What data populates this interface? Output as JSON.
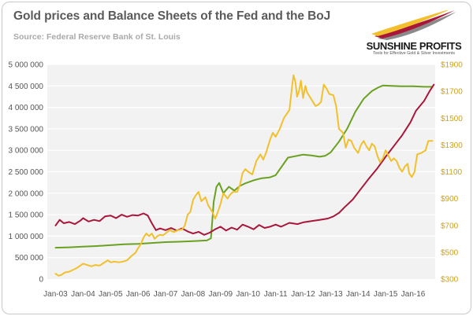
{
  "chart_data": {
    "type": "line",
    "title": "Gold prices and Balance Sheets of the Fed and the BoJ",
    "subtitle": "Source: Federal Reserve Bank of St. Louis",
    "x_tick_labels": [
      "Jan-03",
      "Jan-04",
      "Jan-05",
      "Jan-06",
      "Jan-07",
      "Jan-08",
      "Jan-09",
      "Jan-10",
      "Jan-11",
      "Jan-12",
      "Jan-13",
      "Jan-14",
      "Jan-15",
      "Jan-16"
    ],
    "x_range": [
      2003.0,
      2016.75
    ],
    "y_left": {
      "range": [
        0,
        5000000
      ],
      "tick_values": [
        0,
        500000,
        1000000,
        1500000,
        2000000,
        2500000,
        3000000,
        3500000,
        4000000,
        4500000,
        5000000
      ],
      "tick_labels": [
        "0",
        "500 000",
        "1 000 000",
        "1 500 000",
        "2 000 000",
        "2 500 000",
        "3 000 000",
        "3 500 000",
        "4 000 000",
        "4 500 000",
        "5 000 000"
      ]
    },
    "y_right": {
      "range": [
        300,
        1900
      ],
      "tick_values": [
        300,
        500,
        700,
        900,
        1100,
        1300,
        1500,
        1700,
        1900
      ],
      "tick_labels": [
        "$300",
        "$500",
        "$700",
        "$900",
        "$1100",
        "$1300",
        "$1500",
        "$1700",
        "$1900"
      ]
    },
    "grid": true,
    "legend": "none",
    "series": [
      {
        "axis": "left",
        "color": "#6aa121",
        "points": [
          [
            2003.0,
            730000
          ],
          [
            2003.5,
            740000
          ],
          [
            2004.0,
            755000
          ],
          [
            2004.5,
            770000
          ],
          [
            2005.0,
            790000
          ],
          [
            2005.5,
            810000
          ],
          [
            2006.0,
            820000
          ],
          [
            2006.5,
            840000
          ],
          [
            2007.0,
            860000
          ],
          [
            2007.5,
            870000
          ],
          [
            2008.0,
            885000
          ],
          [
            2008.5,
            900000
          ],
          [
            2008.65,
            950000
          ],
          [
            2008.75,
            1800000
          ],
          [
            2008.85,
            2150000
          ],
          [
            2008.95,
            2240000
          ],
          [
            2009.1,
            2000000
          ],
          [
            2009.3,
            2150000
          ],
          [
            2009.5,
            2060000
          ],
          [
            2009.7,
            2170000
          ],
          [
            2009.9,
            2230000
          ],
          [
            2010.2,
            2300000
          ],
          [
            2010.5,
            2350000
          ],
          [
            2010.8,
            2370000
          ],
          [
            2011.0,
            2420000
          ],
          [
            2011.2,
            2600000
          ],
          [
            2011.45,
            2830000
          ],
          [
            2011.7,
            2860000
          ],
          [
            2012.0,
            2900000
          ],
          [
            2012.3,
            2880000
          ],
          [
            2012.6,
            2850000
          ],
          [
            2012.8,
            2870000
          ],
          [
            2013.0,
            2950000
          ],
          [
            2013.3,
            3200000
          ],
          [
            2013.6,
            3500000
          ],
          [
            2013.9,
            3900000
          ],
          [
            2014.2,
            4200000
          ],
          [
            2014.5,
            4380000
          ],
          [
            2014.75,
            4470000
          ],
          [
            2014.9,
            4510000
          ],
          [
            2015.2,
            4500000
          ],
          [
            2015.6,
            4490000
          ],
          [
            2016.0,
            4490000
          ],
          [
            2016.4,
            4480000
          ],
          [
            2016.7,
            4480000
          ]
        ]
      },
      {
        "axis": "left",
        "color": "#a8173a",
        "points": [
          [
            2003.0,
            1250000
          ],
          [
            2003.15,
            1380000
          ],
          [
            2003.3,
            1300000
          ],
          [
            2003.5,
            1330000
          ],
          [
            2003.7,
            1280000
          ],
          [
            2003.9,
            1360000
          ],
          [
            2004.0,
            1420000
          ],
          [
            2004.2,
            1340000
          ],
          [
            2004.4,
            1380000
          ],
          [
            2004.6,
            1350000
          ],
          [
            2004.8,
            1460000
          ],
          [
            2005.0,
            1480000
          ],
          [
            2005.2,
            1420000
          ],
          [
            2005.4,
            1500000
          ],
          [
            2005.6,
            1450000
          ],
          [
            2005.8,
            1490000
          ],
          [
            2006.0,
            1480000
          ],
          [
            2006.2,
            1530000
          ],
          [
            2006.35,
            1480000
          ],
          [
            2006.5,
            1300000
          ],
          [
            2006.65,
            1140000
          ],
          [
            2006.8,
            1180000
          ],
          [
            2007.0,
            1140000
          ],
          [
            2007.2,
            1190000
          ],
          [
            2007.4,
            1130000
          ],
          [
            2007.6,
            1180000
          ],
          [
            2007.8,
            1110000
          ],
          [
            2008.0,
            1060000
          ],
          [
            2008.2,
            1100000
          ],
          [
            2008.4,
            1030000
          ],
          [
            2008.6,
            1080000
          ],
          [
            2008.8,
            1160000
          ],
          [
            2009.0,
            1220000
          ],
          [
            2009.2,
            1130000
          ],
          [
            2009.4,
            1200000
          ],
          [
            2009.6,
            1150000
          ],
          [
            2009.8,
            1270000
          ],
          [
            2010.0,
            1220000
          ],
          [
            2010.2,
            1160000
          ],
          [
            2010.4,
            1260000
          ],
          [
            2010.6,
            1190000
          ],
          [
            2010.8,
            1220000
          ],
          [
            2011.0,
            1270000
          ],
          [
            2011.2,
            1220000
          ],
          [
            2011.5,
            1310000
          ],
          [
            2011.8,
            1280000
          ],
          [
            2012.0,
            1320000
          ],
          [
            2012.3,
            1350000
          ],
          [
            2012.6,
            1380000
          ],
          [
            2012.9,
            1410000
          ],
          [
            2013.1,
            1460000
          ],
          [
            2013.3,
            1540000
          ],
          [
            2013.5,
            1670000
          ],
          [
            2013.8,
            1850000
          ],
          [
            2014.1,
            2100000
          ],
          [
            2014.4,
            2350000
          ],
          [
            2014.7,
            2580000
          ],
          [
            2015.0,
            2850000
          ],
          [
            2015.3,
            3100000
          ],
          [
            2015.6,
            3350000
          ],
          [
            2015.9,
            3650000
          ],
          [
            2016.1,
            3920000
          ],
          [
            2016.4,
            4150000
          ],
          [
            2016.6,
            4380000
          ],
          [
            2016.75,
            4530000
          ]
        ]
      },
      {
        "axis": "right",
        "color": "#f2c02c",
        "points": [
          [
            2003.0,
            340
          ],
          [
            2003.1,
            325
          ],
          [
            2003.2,
            330
          ],
          [
            2003.35,
            350
          ],
          [
            2003.5,
            355
          ],
          [
            2003.6,
            365
          ],
          [
            2003.75,
            380
          ],
          [
            2003.9,
            400
          ],
          [
            2004.0,
            415
          ],
          [
            2004.15,
            405
          ],
          [
            2004.3,
            395
          ],
          [
            2004.45,
            405
          ],
          [
            2004.6,
            400
          ],
          [
            2004.75,
            420
          ],
          [
            2004.9,
            440
          ],
          [
            2005.0,
            425
          ],
          [
            2005.15,
            430
          ],
          [
            2005.3,
            425
          ],
          [
            2005.45,
            430
          ],
          [
            2005.6,
            440
          ],
          [
            2005.75,
            470
          ],
          [
            2005.9,
            495
          ],
          [
            2006.0,
            530
          ],
          [
            2006.1,
            560
          ],
          [
            2006.2,
            610
          ],
          [
            2006.3,
            640
          ],
          [
            2006.4,
            620
          ],
          [
            2006.5,
            640
          ],
          [
            2006.6,
            600
          ],
          [
            2006.7,
            620
          ],
          [
            2006.8,
            630
          ],
          [
            2006.9,
            625
          ],
          [
            2007.0,
            640
          ],
          [
            2007.15,
            665
          ],
          [
            2007.3,
            650
          ],
          [
            2007.45,
            665
          ],
          [
            2007.6,
            670
          ],
          [
            2007.7,
            700
          ],
          [
            2007.8,
            780
          ],
          [
            2007.9,
            800
          ],
          [
            2008.0,
            890
          ],
          [
            2008.1,
            925
          ],
          [
            2008.2,
            950
          ],
          [
            2008.3,
            880
          ],
          [
            2008.45,
            910
          ],
          [
            2008.55,
            850
          ],
          [
            2008.7,
            800
          ],
          [
            2008.8,
            750
          ],
          [
            2008.9,
            800
          ],
          [
            2009.0,
            860
          ],
          [
            2009.1,
            940
          ],
          [
            2009.25,
            900
          ],
          [
            2009.35,
            930
          ],
          [
            2009.45,
            950
          ],
          [
            2009.6,
            950
          ],
          [
            2009.7,
            1000
          ],
          [
            2009.8,
            1090
          ],
          [
            2009.9,
            1120
          ],
          [
            2010.0,
            1100
          ],
          [
            2010.15,
            1080
          ],
          [
            2010.3,
            1180
          ],
          [
            2010.45,
            1230
          ],
          [
            2010.55,
            1190
          ],
          [
            2010.65,
            1240
          ],
          [
            2010.8,
            1340
          ],
          [
            2010.9,
            1390
          ],
          [
            2011.0,
            1360
          ],
          [
            2011.15,
            1420
          ],
          [
            2011.3,
            1500
          ],
          [
            2011.4,
            1530
          ],
          [
            2011.5,
            1560
          ],
          [
            2011.6,
            1740
          ],
          [
            2011.65,
            1820
          ],
          [
            2011.72,
            1770
          ],
          [
            2011.78,
            1660
          ],
          [
            2011.85,
            1700
          ],
          [
            2011.92,
            1780
          ],
          [
            2012.0,
            1650
          ],
          [
            2012.08,
            1740
          ],
          [
            2012.15,
            1690
          ],
          [
            2012.3,
            1640
          ],
          [
            2012.45,
            1590
          ],
          [
            2012.55,
            1600
          ],
          [
            2012.65,
            1620
          ],
          [
            2012.75,
            1750
          ],
          [
            2012.85,
            1720
          ],
          [
            2012.95,
            1680
          ],
          [
            2013.1,
            1670
          ],
          [
            2013.2,
            1590
          ],
          [
            2013.3,
            1420
          ],
          [
            2013.45,
            1390
          ],
          [
            2013.55,
            1280
          ],
          [
            2013.65,
            1340
          ],
          [
            2013.75,
            1330
          ],
          [
            2013.85,
            1280
          ],
          [
            2014.0,
            1240
          ],
          [
            2014.1,
            1300
          ],
          [
            2014.2,
            1330
          ],
          [
            2014.3,
            1290
          ],
          [
            2014.4,
            1260
          ],
          [
            2014.5,
            1310
          ],
          [
            2014.6,
            1290
          ],
          [
            2014.7,
            1220
          ],
          [
            2014.8,
            1170
          ],
          [
            2014.9,
            1200
          ],
          [
            2015.0,
            1260
          ],
          [
            2015.1,
            1220
          ],
          [
            2015.2,
            1180
          ],
          [
            2015.3,
            1200
          ],
          [
            2015.4,
            1180
          ],
          [
            2015.5,
            1130
          ],
          [
            2015.6,
            1100
          ],
          [
            2015.7,
            1140
          ],
          [
            2015.8,
            1160
          ],
          [
            2015.85,
            1090
          ],
          [
            2015.95,
            1060
          ],
          [
            2016.05,
            1100
          ],
          [
            2016.15,
            1230
          ],
          [
            2016.3,
            1240
          ],
          [
            2016.45,
            1260
          ],
          [
            2016.55,
            1330
          ],
          [
            2016.7,
            1330
          ]
        ]
      }
    ]
  },
  "logo": {
    "name": "SUNSHINE PROFITS",
    "tagline": "Tools for Effective Gold & Silver Investments",
    "colors": [
      "#f2c02c",
      "#a8173a",
      "#8a8a8a"
    ]
  }
}
